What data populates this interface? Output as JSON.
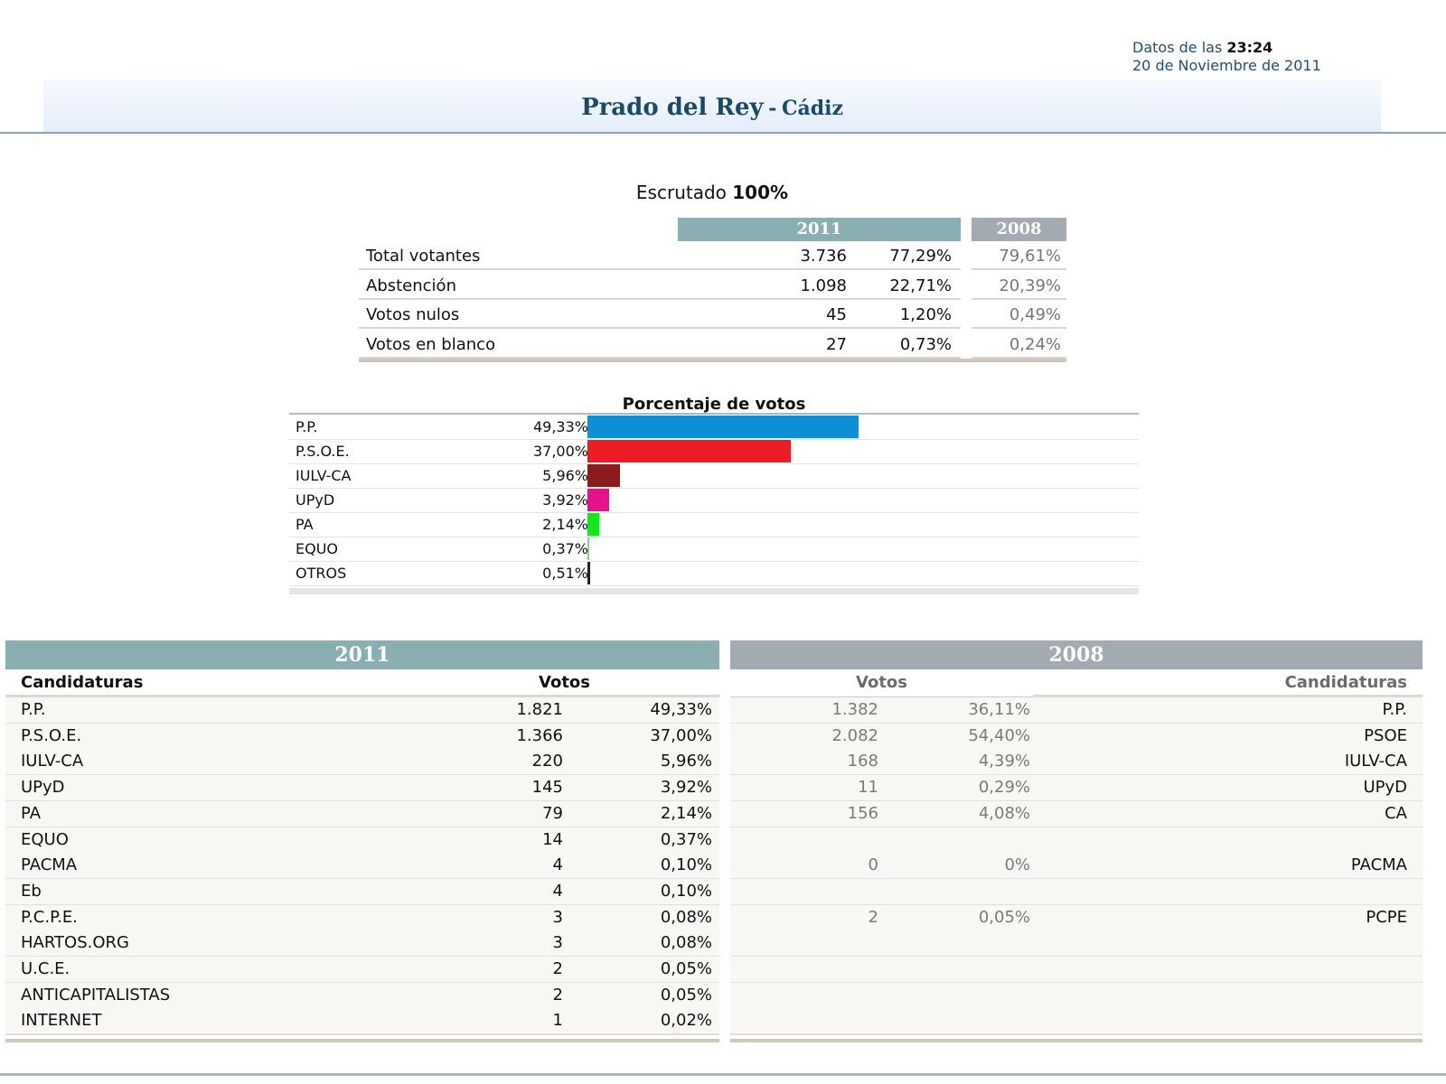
{
  "header": {
    "update_prefix": "Datos de las",
    "update_time": "23:24",
    "update_date": "20 de Noviembre de 2011",
    "town": "Prado del Rey",
    "separator": "-",
    "province": "Cádiz"
  },
  "escrutado": {
    "label": "Escrutado",
    "value": "100%"
  },
  "summary": {
    "year_current": "2011",
    "year_previous": "2008",
    "rows": [
      {
        "label": "Total votantes",
        "number": "3.736",
        "pct": "77,29%",
        "prev_pct": "79,61%"
      },
      {
        "label": "Abstención",
        "number": "1.098",
        "pct": "22,71%",
        "prev_pct": "20,39%"
      },
      {
        "label": "Votos nulos",
        "number": "45",
        "pct": "1,20%",
        "prev_pct": "0,49%"
      },
      {
        "label": "Votos en blanco",
        "number": "27",
        "pct": "0,73%",
        "prev_pct": "0,24%"
      }
    ]
  },
  "vote_chart": {
    "title": "Porcentaje de votos",
    "bars": [
      {
        "party": "P.P.",
        "pct_label": "49,33%",
        "value": 49.33,
        "color": "#0e8fd6"
      },
      {
        "party": "P.S.O.E.",
        "pct_label": "37,00%",
        "value": 37.0,
        "color": "#ec1c24"
      },
      {
        "party": "IULV-CA",
        "pct_label": "5,96%",
        "value": 5.96,
        "color": "#8b1c1e"
      },
      {
        "party": "UPyD",
        "pct_label": "3,92%",
        "value": 3.92,
        "color": "#e6128c"
      },
      {
        "party": "PA",
        "pct_label": "2,14%",
        "value": 2.14,
        "color": "#12e61e"
      },
      {
        "party": "EQUO",
        "pct_label": "0,37%",
        "value": 0.37,
        "color": "#8bd08d"
      },
      {
        "party": "OTROS",
        "pct_label": "0,51%",
        "value": 0.51,
        "color": "#222222"
      }
    ]
  },
  "candidates": {
    "year_current": "2011",
    "year_previous": "2008",
    "col_candidatures": "Candidaturas",
    "col_votes": "Votos",
    "rows_2011": [
      {
        "name": "P.P.",
        "votes": "1.821",
        "pct": "49,33%"
      },
      {
        "name": "P.S.O.E.",
        "votes": "1.366",
        "pct": "37,00%"
      },
      {
        "name": "IULV-CA",
        "votes": "220",
        "pct": "5,96%"
      },
      {
        "name": "UPyD",
        "votes": "145",
        "pct": "3,92%"
      },
      {
        "name": "PA",
        "votes": "79",
        "pct": "2,14%"
      },
      {
        "name": "EQUO",
        "votes": "14",
        "pct": "0,37%"
      },
      {
        "name": "PACMA",
        "votes": "4",
        "pct": "0,10%"
      },
      {
        "name": "Eb",
        "votes": "4",
        "pct": "0,10%"
      },
      {
        "name": "P.C.P.E.",
        "votes": "3",
        "pct": "0,08%"
      },
      {
        "name": "HARTOS.ORG",
        "votes": "3",
        "pct": "0,08%"
      },
      {
        "name": "U.C.E.",
        "votes": "2",
        "pct": "0,05%"
      },
      {
        "name": "ANTICAPITALISTAS",
        "votes": "2",
        "pct": "0,05%"
      },
      {
        "name": "INTERNET",
        "votes": "1",
        "pct": "0,02%"
      }
    ],
    "rows_2008": [
      {
        "votes": "1.382",
        "pct": "36,11%",
        "name": "P.P."
      },
      {
        "votes": "2.082",
        "pct": "54,40%",
        "name": "PSOE"
      },
      {
        "votes": "168",
        "pct": "4,39%",
        "name": "IULV-CA"
      },
      {
        "votes": "11",
        "pct": "0,29%",
        "name": "UPyD"
      },
      {
        "votes": "156",
        "pct": "4,08%",
        "name": "CA"
      },
      {
        "votes": "",
        "pct": "",
        "name": ""
      },
      {
        "votes": "0",
        "pct": "0%",
        "name": "PACMA"
      },
      {
        "votes": "",
        "pct": "",
        "name": ""
      },
      {
        "votes": "2",
        "pct": "0,05%",
        "name": "PCPE"
      },
      {
        "votes": "",
        "pct": "",
        "name": ""
      },
      {
        "votes": "",
        "pct": "",
        "name": ""
      },
      {
        "votes": "",
        "pct": "",
        "name": ""
      },
      {
        "votes": "",
        "pct": "",
        "name": ""
      }
    ]
  }
}
